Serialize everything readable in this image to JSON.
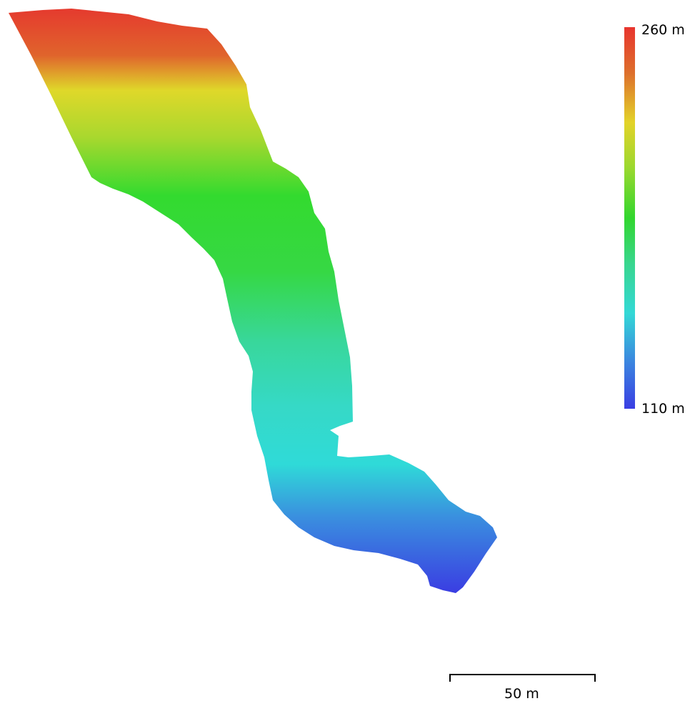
{
  "legend": {
    "max_label": "260 m",
    "min_label": "110 m",
    "max_elevation_m": 260,
    "min_elevation_m": 110,
    "colors": [
      "#e8352e",
      "#dd6f2c",
      "#e3d329",
      "#9ad82f",
      "#32d62e",
      "#38d68e",
      "#33d8d6",
      "#3b8adf",
      "#3a3ee3"
    ]
  },
  "scale_bar": {
    "label": "50 m"
  }
}
